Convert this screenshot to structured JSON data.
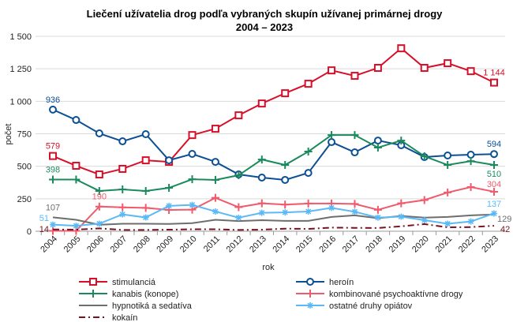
{
  "chart_data": {
    "type": "line",
    "title": "Liečení užívatelia drog podľa vybraných skupín užívanej primárnej drogy",
    "subtitle": "2004 – 2023",
    "xlabel": "rok",
    "ylabel": "počet",
    "ylim": [
      0,
      1500
    ],
    "yticks": [
      0,
      250,
      500,
      750,
      1000,
      1250,
      1500
    ],
    "ytick_labels": [
      "0",
      "250",
      "500",
      "750",
      "1 000",
      "1 250",
      "1 500"
    ],
    "grid": "horizontal",
    "legend_position": "bottom",
    "categories": [
      "2004",
      "2005",
      "2006",
      "2007",
      "2008",
      "2009",
      "2010",
      "2011",
      "2012",
      "2013",
      "2014",
      "2015",
      "2016",
      "2017",
      "2018",
      "2019",
      "2020",
      "2021",
      "2022",
      "2023"
    ],
    "series": [
      {
        "name": "stimulanciá",
        "color": "#d7102a",
        "marker": "square",
        "values": [
          579,
          504,
          437,
          480,
          546,
          534,
          740,
          789,
          892,
          983,
          1062,
          1135,
          1238,
          1196,
          1257,
          1408,
          1257,
          1293,
          1232,
          1144
        ]
      },
      {
        "name": "heroín",
        "color": "#0d4f95",
        "marker": "circle",
        "values": [
          936,
          856,
          753,
          692,
          747,
          546,
          595,
          534,
          437,
          413,
          395,
          449,
          686,
          607,
          698,
          662,
          571,
          583,
          589,
          594
        ]
      },
      {
        "name": "kanabis (konope)",
        "color": "#1a8a5e",
        "marker": "plus",
        "values": [
          398,
          398,
          310,
          322,
          310,
          334,
          400,
          395,
          431,
          552,
          510,
          613,
          740,
          740,
          644,
          698,
          577,
          510,
          540,
          510
        ]
      },
      {
        "name": "kombinované psychoaktívne drogy",
        "color": "#f05a6b",
        "marker": "plus",
        "values": [
          3,
          3,
          190,
          184,
          180,
          164,
          166,
          257,
          185,
          215,
          205,
          213,
          213,
          210,
          165,
          215,
          240,
          298,
          340,
          304
        ]
      },
      {
        "name": "hypnotiká a sedatíva",
        "color": "#6e6e6e",
        "marker": "none",
        "values": [
          107,
          88,
          50,
          58,
          58,
          56,
          62,
          88,
          78,
          85,
          80,
          80,
          110,
          122,
          100,
          118,
          105,
          110,
          122,
          129
        ]
      },
      {
        "name": "ostatné druhy opiátov",
        "color": "#5bb9f5",
        "marker": "star",
        "values": [
          51,
          42,
          58,
          130,
          106,
          195,
          203,
          152,
          104,
          142,
          145,
          152,
          180,
          150,
          105,
          112,
          85,
          58,
          75,
          137
        ]
      },
      {
        "name": "kokaín",
        "color": "#7a1020",
        "marker": "none",
        "dash": "dashdot",
        "values": [
          14,
          12,
          22,
          10,
          10,
          12,
          15,
          15,
          10,
          12,
          20,
          18,
          28,
          26,
          25,
          38,
          55,
          30,
          32,
          42
        ]
      }
    ],
    "data_labels": [
      {
        "series": 0,
        "index": 0,
        "text": "579"
      },
      {
        "series": 0,
        "index": 19,
        "text": "1 144"
      },
      {
        "series": 1,
        "index": 0,
        "text": "936"
      },
      {
        "series": 1,
        "index": 19,
        "text": "594"
      },
      {
        "series": 2,
        "index": 0,
        "text": "398"
      },
      {
        "series": 2,
        "index": 19,
        "text": "510"
      },
      {
        "series": 3,
        "index": 2,
        "text": "190"
      },
      {
        "series": 3,
        "index": 19,
        "text": "304"
      },
      {
        "series": 4,
        "index": 0,
        "text": "107"
      },
      {
        "series": 4,
        "index": 19,
        "text": "129"
      },
      {
        "series": 5,
        "index": 0,
        "text": "51"
      },
      {
        "series": 5,
        "index": 19,
        "text": "137"
      },
      {
        "series": 6,
        "index": 0,
        "text": "14"
      },
      {
        "series": 6,
        "index": 19,
        "text": "42"
      }
    ]
  }
}
